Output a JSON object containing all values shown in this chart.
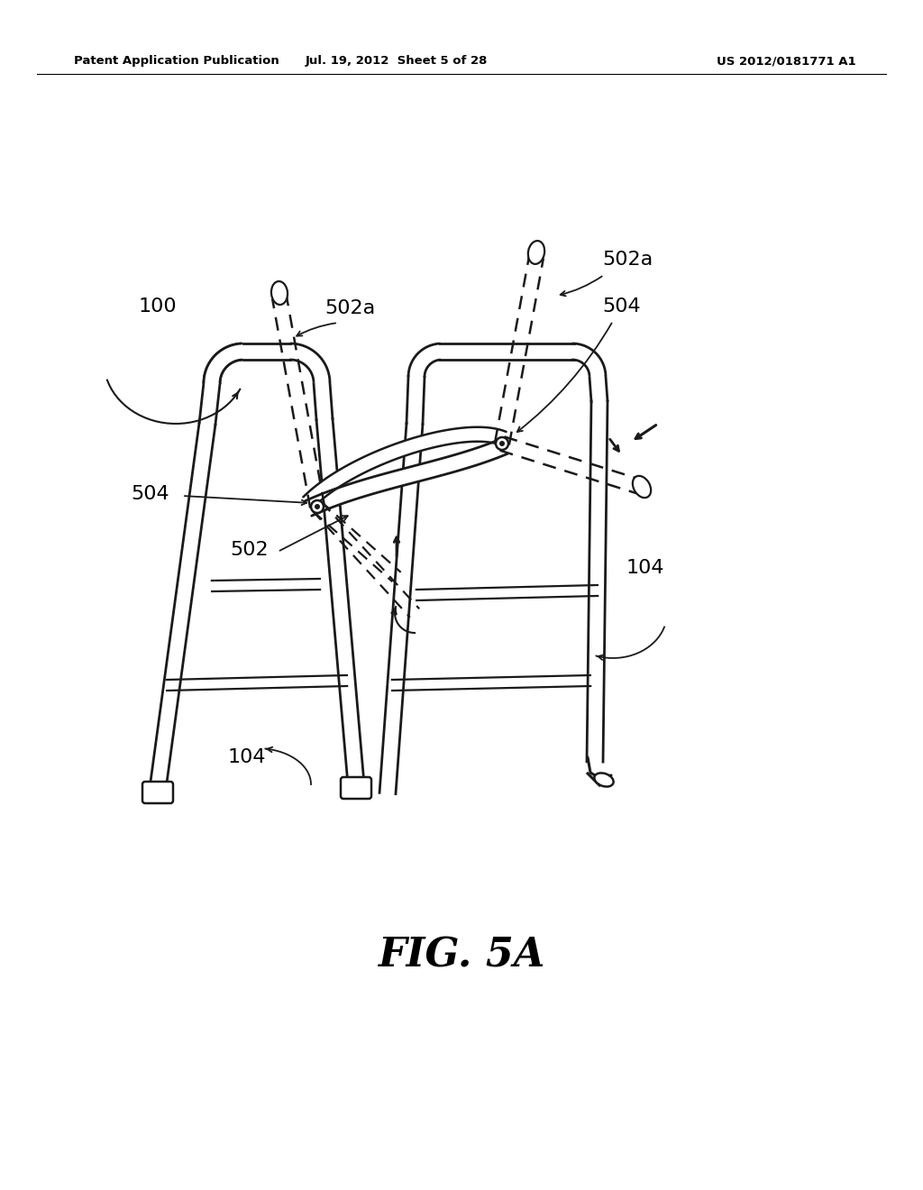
{
  "bg_color": "#ffffff",
  "header_left": "Patent Application Publication",
  "header_mid": "Jul. 19, 2012  Sheet 5 of 28",
  "header_right": "US 2012/0181771 A1",
  "header_fontsize": 9.5,
  "fig_label": "FIG. 5A",
  "fig_label_fontsize": 32,
  "line_color": "#1a1a1a"
}
